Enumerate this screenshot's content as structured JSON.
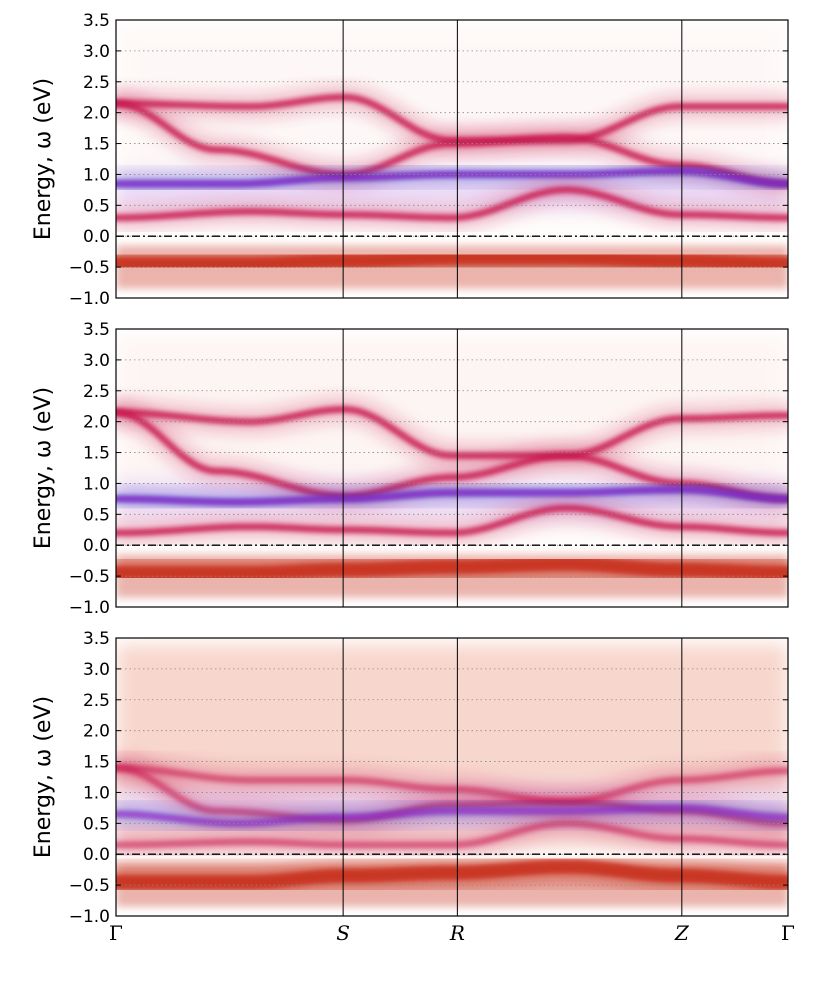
{
  "chart_data": [
    {
      "type": "heatmap",
      "ylabel": "Energy, ω (eV)",
      "ylim": [
        -1.0,
        3.5
      ],
      "yticks": [
        "3.5",
        "3.0",
        "2.5",
        "2.0",
        "1.5",
        "1.0",
        "0.5",
        "0.0",
        "−0.5",
        "−1.0"
      ],
      "ytick_values": [
        3.5,
        3.0,
        2.5,
        2.0,
        1.5,
        1.0,
        0.5,
        0.0,
        -0.5,
        -1.0
      ],
      "grid": "horizontal dotted",
      "fermi_level": 0.0,
      "high_symmetry_points": [
        "Γ",
        "S",
        "R",
        "Z",
        "Γ"
      ],
      "bands": [
        {
          "x": [
            0,
            0.2,
            0.34,
            0.5,
            0.67,
            0.84,
            1.0
          ],
          "y": [
            2.15,
            2.1,
            2.25,
            1.55,
            1.55,
            2.1,
            2.1
          ]
        },
        {
          "x": [
            0,
            0.15,
            0.34,
            0.5,
            0.67,
            0.84,
            1.0
          ],
          "y": [
            2.15,
            1.4,
            1.0,
            1.5,
            1.6,
            1.15,
            0.85
          ]
        },
        {
          "x": [
            0,
            0.18,
            0.34,
            0.5,
            0.67,
            0.84,
            1.0
          ],
          "y": [
            0.85,
            0.85,
            0.95,
            1.0,
            1.0,
            1.05,
            0.85
          ]
        },
        {
          "x": [
            0,
            0.2,
            0.34,
            0.5,
            0.67,
            0.84,
            1.0
          ],
          "y": [
            0.3,
            0.4,
            0.35,
            0.3,
            0.75,
            0.35,
            0.3
          ]
        },
        {
          "x": [
            0,
            0.2,
            0.34,
            0.5,
            0.67,
            0.84,
            1.0
          ],
          "y": [
            -0.45,
            -0.45,
            -0.4,
            -0.35,
            -0.35,
            -0.4,
            -0.45
          ]
        }
      ],
      "background_level": 0.05
    },
    {
      "type": "heatmap",
      "ylabel": "Energy, ω (eV)",
      "ylim": [
        -1.0,
        3.5
      ],
      "yticks": [
        "3.5",
        "3.0",
        "2.5",
        "2.0",
        "1.5",
        "1.0",
        "0.5",
        "0.0",
        "−0.5",
        "−1.0"
      ],
      "ytick_values": [
        3.5,
        3.0,
        2.5,
        2.0,
        1.5,
        1.0,
        0.5,
        0.0,
        -0.5,
        -1.0
      ],
      "grid": "horizontal dotted",
      "fermi_level": 0.0,
      "high_symmetry_points": [
        "Γ",
        "S",
        "R",
        "Z",
        "Γ"
      ],
      "bands": [
        {
          "x": [
            0,
            0.2,
            0.34,
            0.5,
            0.67,
            0.84,
            1.0
          ],
          "y": [
            2.15,
            2.0,
            2.2,
            1.45,
            1.45,
            2.05,
            2.1
          ]
        },
        {
          "x": [
            0,
            0.15,
            0.34,
            0.5,
            0.67,
            0.84,
            1.0
          ],
          "y": [
            2.15,
            1.2,
            0.8,
            1.1,
            1.45,
            1.0,
            0.75
          ]
        },
        {
          "x": [
            0,
            0.18,
            0.34,
            0.5,
            0.67,
            0.84,
            1.0
          ],
          "y": [
            0.75,
            0.7,
            0.75,
            0.85,
            0.85,
            0.9,
            0.75
          ]
        },
        {
          "x": [
            0,
            0.2,
            0.34,
            0.5,
            0.67,
            0.84,
            1.0
          ],
          "y": [
            0.2,
            0.3,
            0.25,
            0.2,
            0.6,
            0.3,
            0.2
          ]
        },
        {
          "x": [
            0,
            0.2,
            0.34,
            0.5,
            0.67,
            0.84,
            1.0
          ],
          "y": [
            -0.45,
            -0.45,
            -0.4,
            -0.35,
            -0.3,
            -0.4,
            -0.45
          ]
        }
      ],
      "background_level": 0.08
    },
    {
      "type": "heatmap",
      "ylabel": "Energy, ω (eV)",
      "ylim": [
        -1.0,
        3.5
      ],
      "yticks": [
        "3.5",
        "3.0",
        "2.5",
        "2.0",
        "1.5",
        "1.0",
        "0.5",
        "0.0",
        "−0.5",
        "−1.0"
      ],
      "ytick_values": [
        3.5,
        3.0,
        2.5,
        2.0,
        1.5,
        1.0,
        0.5,
        0.0,
        -0.5,
        -1.0
      ],
      "grid": "horizontal dotted",
      "fermi_level": 0.0,
      "high_symmetry_points": [
        "Γ",
        "S",
        "R",
        "Z",
        "Γ"
      ],
      "bands": [
        {
          "x": [
            0,
            0.2,
            0.34,
            0.5,
            0.67,
            0.84,
            1.0
          ],
          "y": [
            1.4,
            1.2,
            1.2,
            1.05,
            0.85,
            1.2,
            1.35
          ]
        },
        {
          "x": [
            0,
            0.15,
            0.34,
            0.5,
            0.67,
            0.84,
            1.0
          ],
          "y": [
            1.4,
            0.7,
            0.55,
            0.8,
            0.85,
            0.7,
            0.5
          ]
        },
        {
          "x": [
            0,
            0.18,
            0.34,
            0.5,
            0.67,
            0.84,
            1.0
          ],
          "y": [
            0.65,
            0.5,
            0.6,
            0.7,
            0.7,
            0.75,
            0.6
          ]
        },
        {
          "x": [
            0,
            0.2,
            0.34,
            0.5,
            0.67,
            0.84,
            1.0
          ],
          "y": [
            0.15,
            0.2,
            0.15,
            0.15,
            0.5,
            0.25,
            0.15
          ]
        },
        {
          "x": [
            0,
            0.2,
            0.34,
            0.5,
            0.67,
            0.84,
            1.0
          ],
          "y": [
            -0.45,
            -0.45,
            -0.35,
            -0.3,
            -0.2,
            -0.35,
            -0.45
          ]
        }
      ],
      "background_level": 0.35
    }
  ],
  "xaxis": {
    "labels": [
      "Γ",
      "S",
      "R",
      "Z",
      "Γ"
    ],
    "positions": [
      0.0,
      0.338,
      0.508,
      0.842,
      1.0
    ]
  },
  "colors": {
    "band_main": "#c8174e",
    "band_blue": "#3a2fc0",
    "band_magenta": "#e020d0",
    "occupied": "#c62a14",
    "background_tint": "#f4c6b8",
    "gap_tint": "#e8d8f8"
  }
}
